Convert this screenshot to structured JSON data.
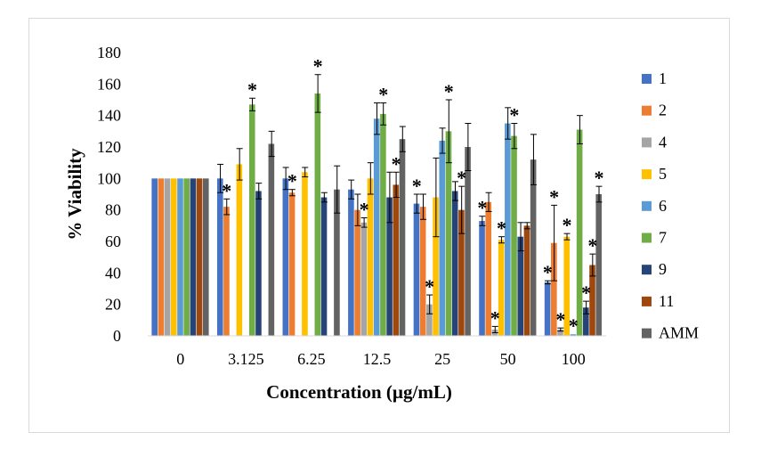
{
  "chart_data": {
    "type": "bar",
    "title": "",
    "xlabel": "Concentration (µg/mL)",
    "ylabel": "% Viability",
    "ylim": [
      0,
      180
    ],
    "yticks": [
      0,
      20,
      40,
      60,
      80,
      100,
      120,
      140,
      160,
      180
    ],
    "grid": false,
    "legend_position": "right",
    "significance_marker": "*",
    "categories": [
      "0",
      "3.125",
      "6.25",
      "12.5",
      "25",
      "50",
      "100"
    ],
    "series": [
      {
        "name": "1",
        "color": "#4472C4",
        "values": [
          100,
          100,
          100,
          93,
          84,
          73,
          34
        ],
        "errors": [
          0,
          9,
          7,
          6,
          6,
          3,
          1
        ],
        "significant": [
          false,
          false,
          false,
          false,
          true,
          true,
          true
        ]
      },
      {
        "name": "2",
        "color": "#ED7D31",
        "values": [
          100,
          82,
          91,
          80,
          82,
          85,
          59
        ],
        "errors": [
          0,
          5,
          2,
          10,
          8,
          6,
          24
        ],
        "significant": [
          false,
          true,
          true,
          false,
          false,
          false,
          true
        ]
      },
      {
        "name": "4",
        "color": "#A5A5A5",
        "values": [
          100,
          null,
          null,
          72,
          20,
          4,
          4
        ],
        "errors": [
          0,
          0,
          0,
          3,
          6,
          2,
          1
        ],
        "significant": [
          false,
          false,
          false,
          true,
          true,
          true,
          true
        ]
      },
      {
        "name": "5",
        "color": "#FFC000",
        "values": [
          100,
          109,
          104,
          100,
          88,
          61,
          63
        ],
        "errors": [
          0,
          10,
          3,
          10,
          25,
          2,
          2
        ],
        "significant": [
          false,
          false,
          false,
          false,
          false,
          true,
          true
        ]
      },
      {
        "name": "6",
        "color": "#5B9BD5",
        "values": [
          100,
          null,
          null,
          138,
          124,
          135,
          1
        ],
        "errors": [
          0,
          0,
          0,
          10,
          8,
          10,
          0
        ],
        "significant": [
          false,
          false,
          false,
          false,
          false,
          false,
          true
        ]
      },
      {
        "name": "7",
        "color": "#70AD47",
        "values": [
          100,
          147,
          154,
          141,
          130,
          127,
          131
        ],
        "errors": [
          0,
          4,
          12,
          7,
          20,
          8,
          9
        ],
        "significant": [
          false,
          true,
          true,
          true,
          true,
          true,
          false
        ]
      },
      {
        "name": "9",
        "color": "#264478",
        "values": [
          100,
          92,
          88,
          88,
          92,
          63,
          18
        ],
        "errors": [
          0,
          5,
          3,
          16,
          6,
          9,
          4
        ],
        "significant": [
          false,
          false,
          false,
          false,
          false,
          false,
          true
        ]
      },
      {
        "name": "11",
        "color": "#9E480E",
        "values": [
          100,
          null,
          null,
          96,
          80,
          70,
          45
        ],
        "errors": [
          0,
          0,
          0,
          8,
          15,
          2,
          7
        ],
        "significant": [
          false,
          false,
          false,
          true,
          true,
          false,
          true
        ]
      },
      {
        "name": "AMM",
        "color": "#636363",
        "values": [
          100,
          122,
          93,
          125,
          120,
          112,
          90
        ],
        "errors": [
          0,
          8,
          15,
          8,
          15,
          16,
          5
        ],
        "significant": [
          false,
          false,
          false,
          false,
          false,
          false,
          true
        ]
      }
    ]
  }
}
